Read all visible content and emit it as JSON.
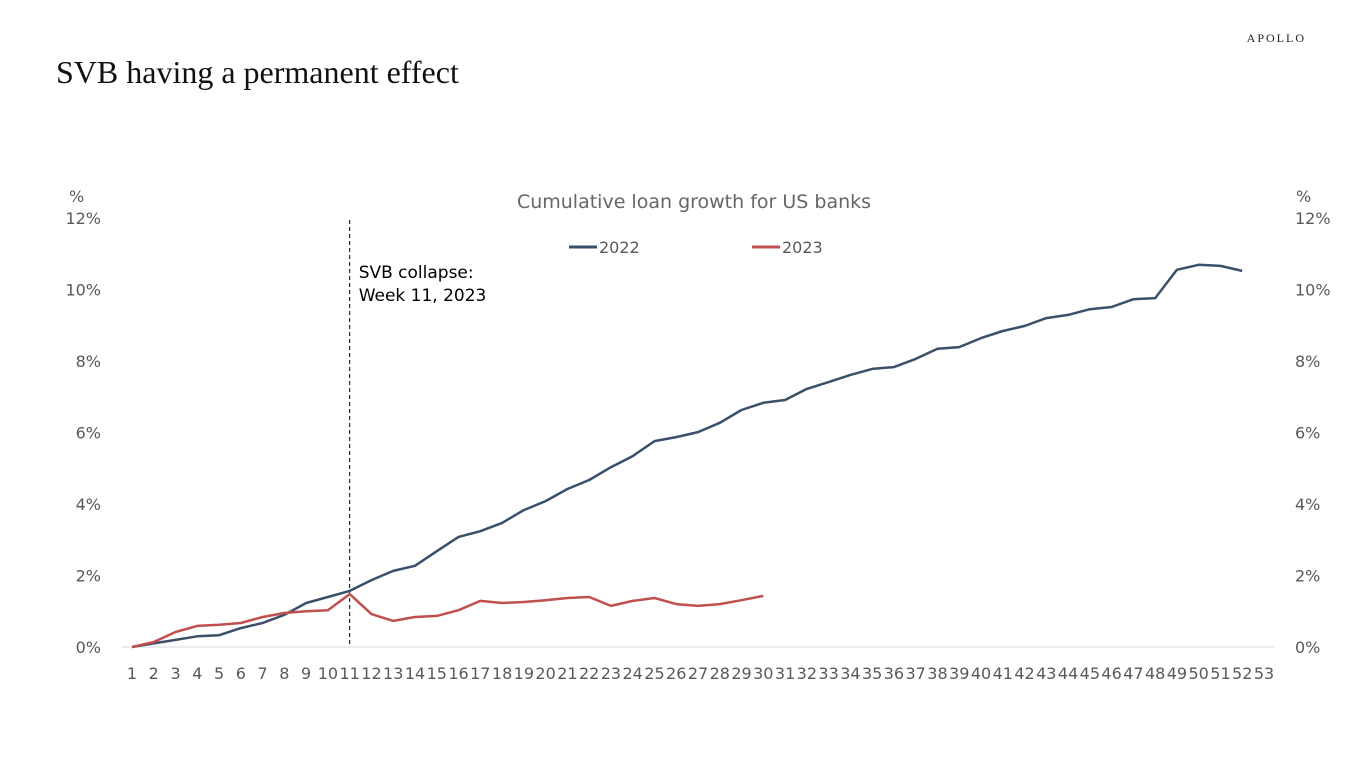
{
  "brand": "APOLLO",
  "title": "SVB having a permanent effect",
  "chart_data": {
    "type": "line",
    "title": "Cumulative loan growth for US banks",
    "y_label": "%",
    "y2_label": "%",
    "categories": [
      1,
      2,
      3,
      4,
      5,
      6,
      7,
      8,
      9,
      10,
      11,
      12,
      13,
      14,
      15,
      16,
      17,
      18,
      19,
      20,
      21,
      22,
      23,
      24,
      25,
      26,
      27,
      28,
      29,
      30,
      31,
      32,
      33,
      34,
      35,
      36,
      37,
      38,
      39,
      40,
      41,
      42,
      43,
      44,
      45,
      46,
      47,
      48,
      49,
      50,
      51,
      52,
      53
    ],
    "series": [
      {
        "name": "2022",
        "color": "#3b4f6b",
        "values": [
          0,
          0.1,
          0.2,
          0.3,
          0.33,
          0.53,
          0.67,
          0.9,
          1.23,
          1.4,
          1.57,
          1.87,
          2.13,
          2.27,
          2.68,
          3.08,
          3.24,
          3.47,
          3.83,
          4.08,
          4.42,
          4.67,
          5.03,
          5.34,
          5.76,
          5.87,
          6.01,
          6.27,
          6.63,
          6.83,
          6.91,
          7.22,
          7.41,
          7.61,
          7.78,
          7.83,
          8.06,
          8.34,
          8.39,
          8.64,
          8.84,
          8.98,
          9.2,
          9.29,
          9.45,
          9.51,
          9.73,
          9.76,
          10.55,
          10.69,
          10.66,
          10.52,
          null
        ]
      },
      {
        "name": "2023",
        "color": "#c0504d",
        "values": [
          0,
          0.14,
          0.42,
          0.59,
          0.62,
          0.67,
          0.84,
          0.95,
          1.0,
          1.03,
          1.48,
          0.92,
          0.73,
          0.84,
          0.87,
          1.03,
          1.29,
          1.23,
          1.26,
          1.31,
          1.37,
          1.4,
          1.15,
          1.29,
          1.37,
          1.2,
          1.15,
          1.2,
          1.31,
          1.43,
          null,
          null,
          null,
          null,
          null,
          null,
          null,
          null,
          null,
          null,
          null,
          null,
          null,
          null,
          null,
          null,
          null,
          null,
          null,
          null,
          null,
          null,
          null
        ]
      }
    ],
    "ylim": [
      0,
      12
    ],
    "yticks": [
      {
        "value": 0,
        "label": "0%"
      },
      {
        "value": 2,
        "label": "2%"
      },
      {
        "value": 4,
        "label": "4%"
      },
      {
        "value": 6,
        "label": "6%"
      },
      {
        "value": 8,
        "label": "8%"
      },
      {
        "value": 10,
        "label": "10%"
      },
      {
        "value": 12,
        "label": "12%"
      }
    ],
    "y2lim": [
      0,
      12
    ],
    "y2ticks": [
      {
        "value": 0,
        "label": "0%"
      },
      {
        "value": 2,
        "label": "2%"
      },
      {
        "value": 4,
        "label": "4%"
      },
      {
        "value": 6,
        "label": "6%"
      },
      {
        "value": 8,
        "label": "8%"
      },
      {
        "value": 10,
        "label": "10%"
      },
      {
        "value": 12,
        "label": "12%"
      }
    ],
    "legend": "top",
    "annotation": {
      "lines": [
        "SVB collapse:",
        "Week 11, 2023"
      ],
      "x": 11
    }
  }
}
